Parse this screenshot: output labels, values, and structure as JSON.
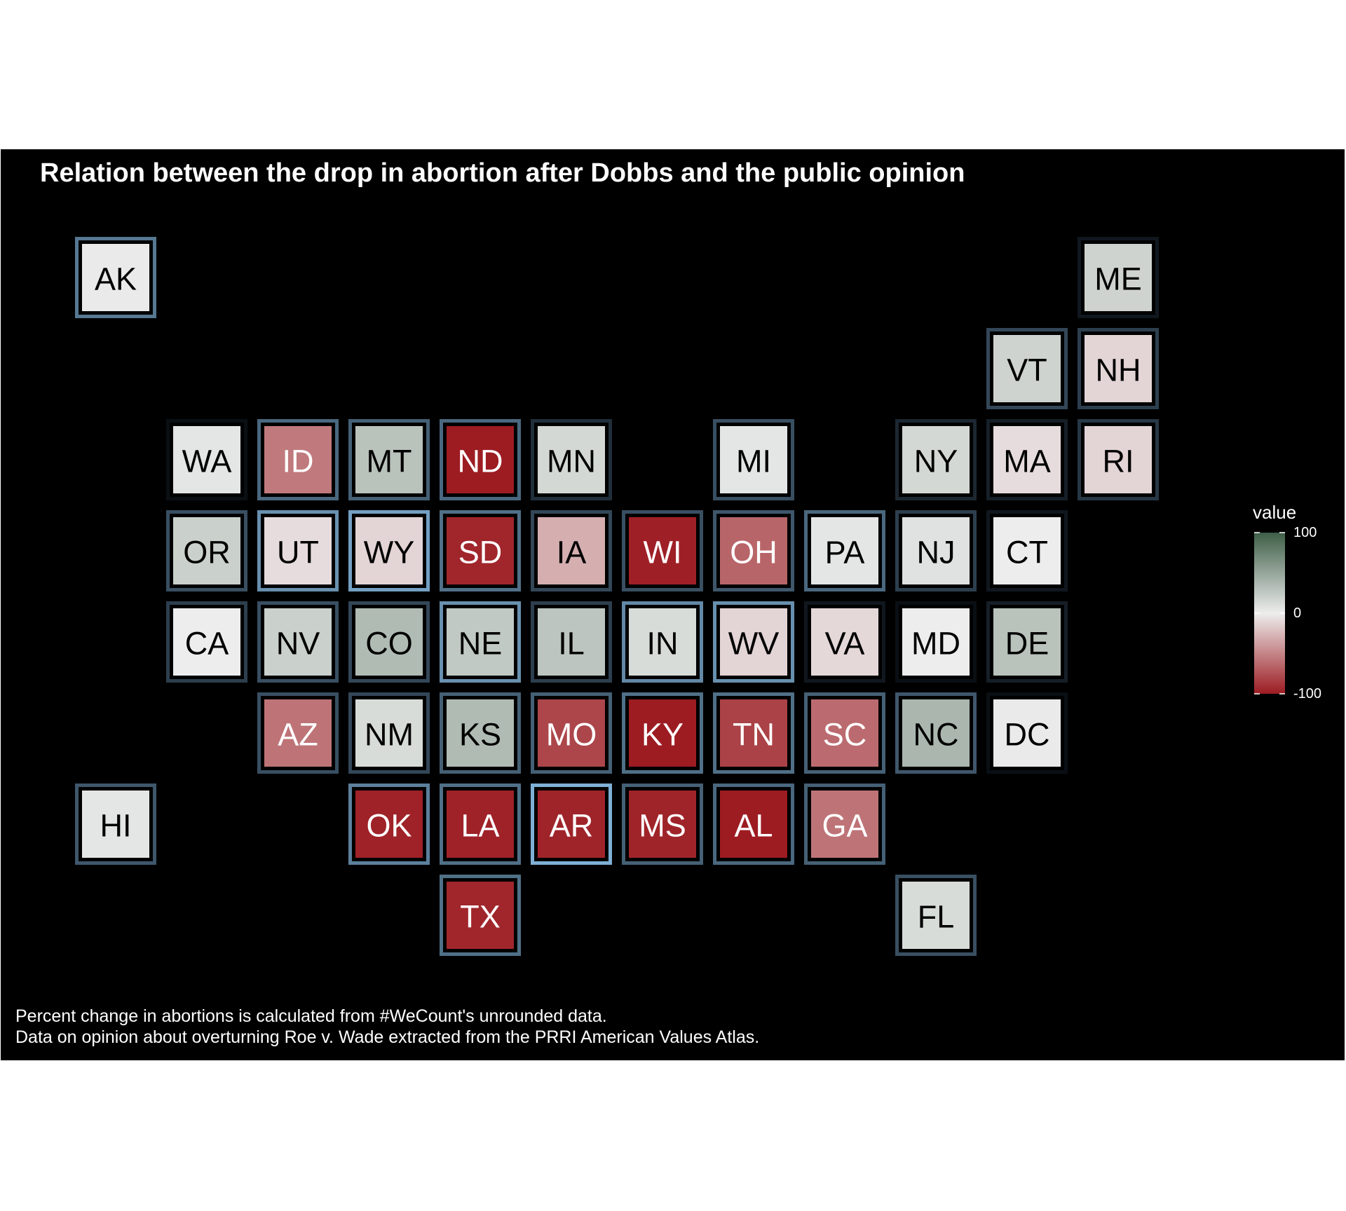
{
  "title": "Relation between the drop in abortion after Dobbs and the public opinion",
  "caption": [
    "Percent change in abortions is calculated from #WeCount's unrounded data.",
    "Data on opinion about overturning Roe v. Wade extracted from the PRRI American Values Atlas."
  ],
  "colors": {
    "background": "#000000",
    "low": "#9c1c22",
    "mid": "#ededed",
    "high": "#3e5e47",
    "border_light": "#7fb0d6",
    "border_dark": "#0a0f14"
  },
  "chart_data": {
    "type": "heatmap",
    "layout": "US state tile grid",
    "legend": {
      "title": "value",
      "range": [
        -100,
        100
      ],
      "ticks": [
        100,
        0,
        -100
      ],
      "placement": "right"
    },
    "tiles": [
      {
        "state": "AK",
        "col": 0,
        "row": 0,
        "value": 2,
        "opinion": 0.65
      },
      {
        "state": "ME",
        "col": 11,
        "row": 0,
        "value": 18,
        "opinion": 0.05
      },
      {
        "state": "VT",
        "col": 10,
        "row": 1,
        "value": 18,
        "opinion": 0.35
      },
      {
        "state": "NH",
        "col": 11,
        "row": 1,
        "value": -12,
        "opinion": 0.3
      },
      {
        "state": "WA",
        "col": 1,
        "row": 2,
        "value": 5,
        "opinion": 0.0
      },
      {
        "state": "ID",
        "col": 2,
        "row": 2,
        "value": -55,
        "opinion": 0.55
      },
      {
        "state": "MT",
        "col": 3,
        "row": 2,
        "value": 30,
        "opinion": 0.5
      },
      {
        "state": "ND",
        "col": 4,
        "row": 2,
        "value": -100,
        "opinion": 0.55
      },
      {
        "state": "MN",
        "col": 5,
        "row": 2,
        "value": 15,
        "opinion": 0.2
      },
      {
        "state": "MI",
        "col": 7,
        "row": 2,
        "value": 5,
        "opinion": 0.4
      },
      {
        "state": "NY",
        "col": 9,
        "row": 2,
        "value": 15,
        "opinion": 0.15
      },
      {
        "state": "MA",
        "col": 10,
        "row": 2,
        "value": -8,
        "opinion": 0.1
      },
      {
        "state": "RI",
        "col": 11,
        "row": 2,
        "value": -12,
        "opinion": 0.25
      },
      {
        "state": "OR",
        "col": 1,
        "row": 3,
        "value": 20,
        "opinion": 0.4
      },
      {
        "state": "UT",
        "col": 2,
        "row": 3,
        "value": -8,
        "opinion": 0.8
      },
      {
        "state": "WY",
        "col": 3,
        "row": 3,
        "value": -12,
        "opinion": 0.9
      },
      {
        "state": "SD",
        "col": 4,
        "row": 3,
        "value": -95,
        "opinion": 0.6
      },
      {
        "state": "IA",
        "col": 5,
        "row": 3,
        "value": -30,
        "opinion": 0.35
      },
      {
        "state": "WI",
        "col": 6,
        "row": 3,
        "value": -98,
        "opinion": 0.4
      },
      {
        "state": "OH",
        "col": 7,
        "row": 3,
        "value": -65,
        "opinion": 0.45
      },
      {
        "state": "PA",
        "col": 8,
        "row": 3,
        "value": 5,
        "opinion": 0.55
      },
      {
        "state": "NJ",
        "col": 9,
        "row": 3,
        "value": 8,
        "opinion": 0.3
      },
      {
        "state": "CT",
        "col": 10,
        "row": 3,
        "value": 0,
        "opinion": 0.05
      },
      {
        "state": "CA",
        "col": 1,
        "row": 4,
        "value": 0,
        "opinion": 0.3
      },
      {
        "state": "NV",
        "col": 2,
        "row": 4,
        "value": 20,
        "opinion": 0.4
      },
      {
        "state": "CO",
        "col": 3,
        "row": 4,
        "value": 35,
        "opinion": 0.35
      },
      {
        "state": "NE",
        "col": 4,
        "row": 4,
        "value": 25,
        "opinion": 0.8
      },
      {
        "state": "IL",
        "col": 5,
        "row": 4,
        "value": 28,
        "opinion": 0.3
      },
      {
        "state": "IN",
        "col": 6,
        "row": 4,
        "value": 12,
        "opinion": 0.75
      },
      {
        "state": "WV",
        "col": 7,
        "row": 4,
        "value": -12,
        "opinion": 0.8
      },
      {
        "state": "VA",
        "col": 8,
        "row": 4,
        "value": -10,
        "opinion": 0.05
      },
      {
        "state": "MD",
        "col": 9,
        "row": 4,
        "value": 0,
        "opinion": 0.0
      },
      {
        "state": "DE",
        "col": 10,
        "row": 4,
        "value": 30,
        "opinion": 0.1
      },
      {
        "state": "AZ",
        "col": 2,
        "row": 5,
        "value": -58,
        "opinion": 0.4
      },
      {
        "state": "NM",
        "col": 3,
        "row": 5,
        "value": 12,
        "opinion": 0.35
      },
      {
        "state": "KS",
        "col": 4,
        "row": 5,
        "value": 35,
        "opinion": 0.5
      },
      {
        "state": "MO",
        "col": 5,
        "row": 5,
        "value": -80,
        "opinion": 0.5
      },
      {
        "state": "KY",
        "col": 6,
        "row": 5,
        "value": -100,
        "opinion": 0.6
      },
      {
        "state": "TN",
        "col": 7,
        "row": 5,
        "value": -82,
        "opinion": 0.6
      },
      {
        "state": "SC",
        "col": 8,
        "row": 5,
        "value": -62,
        "opinion": 0.5
      },
      {
        "state": "NC",
        "col": 9,
        "row": 5,
        "value": 38,
        "opinion": 0.45
      },
      {
        "state": "DC",
        "col": 10,
        "row": 5,
        "value": 2,
        "opinion": 0.0
      },
      {
        "state": "HI",
        "col": 0,
        "row": 6,
        "value": 5,
        "opinion": 0.45
      },
      {
        "state": "OK",
        "col": 3,
        "row": 6,
        "value": -97,
        "opinion": 0.7
      },
      {
        "state": "LA",
        "col": 4,
        "row": 6,
        "value": -97,
        "opinion": 0.6
      },
      {
        "state": "AR",
        "col": 5,
        "row": 6,
        "value": -96,
        "opinion": 1.0
      },
      {
        "state": "MS",
        "col": 6,
        "row": 6,
        "value": -96,
        "opinion": 0.5
      },
      {
        "state": "AL",
        "col": 7,
        "row": 6,
        "value": -100,
        "opinion": 0.55
      },
      {
        "state": "GA",
        "col": 8,
        "row": 6,
        "value": -58,
        "opinion": 0.5
      },
      {
        "state": "TX",
        "col": 4,
        "row": 7,
        "value": -95,
        "opinion": 0.6
      },
      {
        "state": "FL",
        "col": 9,
        "row": 7,
        "value": 12,
        "opinion": 0.4
      }
    ]
  }
}
